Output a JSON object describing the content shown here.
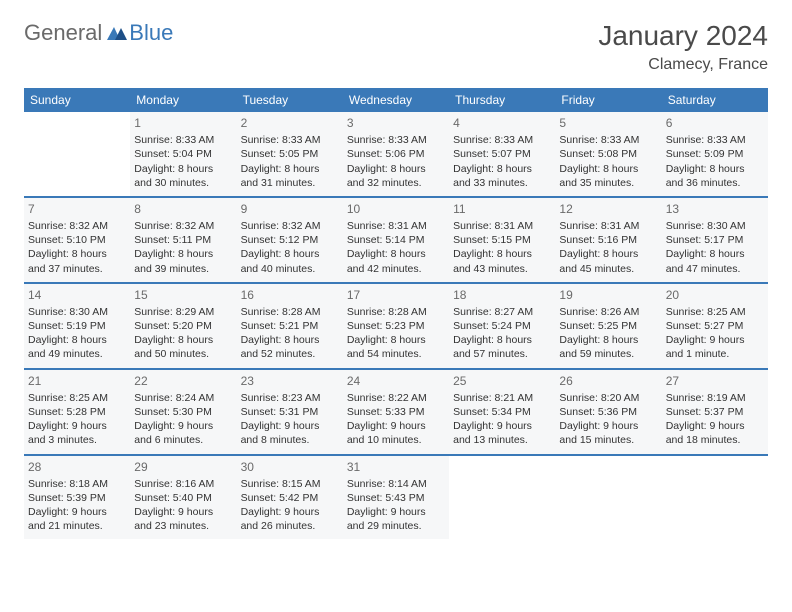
{
  "logo": {
    "text1": "General",
    "text2": "Blue"
  },
  "title": "January 2024",
  "location": "Clamecy, France",
  "day_names": [
    "Sunday",
    "Monday",
    "Tuesday",
    "Wednesday",
    "Thursday",
    "Friday",
    "Saturday"
  ],
  "colors": {
    "header_bg": "#3a79b8",
    "header_fg": "#ffffff",
    "cell_bg": "#f6f7f8",
    "text": "#333333",
    "title": "#4a4a4a"
  },
  "weeks": [
    [
      {
        "empty": true
      },
      {
        "num": "1",
        "sunrise": "8:33 AM",
        "sunset": "5:04 PM",
        "daylight": "8 hours and 30 minutes."
      },
      {
        "num": "2",
        "sunrise": "8:33 AM",
        "sunset": "5:05 PM",
        "daylight": "8 hours and 31 minutes."
      },
      {
        "num": "3",
        "sunrise": "8:33 AM",
        "sunset": "5:06 PM",
        "daylight": "8 hours and 32 minutes."
      },
      {
        "num": "4",
        "sunrise": "8:33 AM",
        "sunset": "5:07 PM",
        "daylight": "8 hours and 33 minutes."
      },
      {
        "num": "5",
        "sunrise": "8:33 AM",
        "sunset": "5:08 PM",
        "daylight": "8 hours and 35 minutes."
      },
      {
        "num": "6",
        "sunrise": "8:33 AM",
        "sunset": "5:09 PM",
        "daylight": "8 hours and 36 minutes."
      }
    ],
    [
      {
        "num": "7",
        "sunrise": "8:32 AM",
        "sunset": "5:10 PM",
        "daylight": "8 hours and 37 minutes."
      },
      {
        "num": "8",
        "sunrise": "8:32 AM",
        "sunset": "5:11 PM",
        "daylight": "8 hours and 39 minutes."
      },
      {
        "num": "9",
        "sunrise": "8:32 AM",
        "sunset": "5:12 PM",
        "daylight": "8 hours and 40 minutes."
      },
      {
        "num": "10",
        "sunrise": "8:31 AM",
        "sunset": "5:14 PM",
        "daylight": "8 hours and 42 minutes."
      },
      {
        "num": "11",
        "sunrise": "8:31 AM",
        "sunset": "5:15 PM",
        "daylight": "8 hours and 43 minutes."
      },
      {
        "num": "12",
        "sunrise": "8:31 AM",
        "sunset": "5:16 PM",
        "daylight": "8 hours and 45 minutes."
      },
      {
        "num": "13",
        "sunrise": "8:30 AM",
        "sunset": "5:17 PM",
        "daylight": "8 hours and 47 minutes."
      }
    ],
    [
      {
        "num": "14",
        "sunrise": "8:30 AM",
        "sunset": "5:19 PM",
        "daylight": "8 hours and 49 minutes."
      },
      {
        "num": "15",
        "sunrise": "8:29 AM",
        "sunset": "5:20 PM",
        "daylight": "8 hours and 50 minutes."
      },
      {
        "num": "16",
        "sunrise": "8:28 AM",
        "sunset": "5:21 PM",
        "daylight": "8 hours and 52 minutes."
      },
      {
        "num": "17",
        "sunrise": "8:28 AM",
        "sunset": "5:23 PM",
        "daylight": "8 hours and 54 minutes."
      },
      {
        "num": "18",
        "sunrise": "8:27 AM",
        "sunset": "5:24 PM",
        "daylight": "8 hours and 57 minutes."
      },
      {
        "num": "19",
        "sunrise": "8:26 AM",
        "sunset": "5:25 PM",
        "daylight": "8 hours and 59 minutes."
      },
      {
        "num": "20",
        "sunrise": "8:25 AM",
        "sunset": "5:27 PM",
        "daylight": "9 hours and 1 minute."
      }
    ],
    [
      {
        "num": "21",
        "sunrise": "8:25 AM",
        "sunset": "5:28 PM",
        "daylight": "9 hours and 3 minutes."
      },
      {
        "num": "22",
        "sunrise": "8:24 AM",
        "sunset": "5:30 PM",
        "daylight": "9 hours and 6 minutes."
      },
      {
        "num": "23",
        "sunrise": "8:23 AM",
        "sunset": "5:31 PM",
        "daylight": "9 hours and 8 minutes."
      },
      {
        "num": "24",
        "sunrise": "8:22 AM",
        "sunset": "5:33 PM",
        "daylight": "9 hours and 10 minutes."
      },
      {
        "num": "25",
        "sunrise": "8:21 AM",
        "sunset": "5:34 PM",
        "daylight": "9 hours and 13 minutes."
      },
      {
        "num": "26",
        "sunrise": "8:20 AM",
        "sunset": "5:36 PM",
        "daylight": "9 hours and 15 minutes."
      },
      {
        "num": "27",
        "sunrise": "8:19 AM",
        "sunset": "5:37 PM",
        "daylight": "9 hours and 18 minutes."
      }
    ],
    [
      {
        "num": "28",
        "sunrise": "8:18 AM",
        "sunset": "5:39 PM",
        "daylight": "9 hours and 21 minutes."
      },
      {
        "num": "29",
        "sunrise": "8:16 AM",
        "sunset": "5:40 PM",
        "daylight": "9 hours and 23 minutes."
      },
      {
        "num": "30",
        "sunrise": "8:15 AM",
        "sunset": "5:42 PM",
        "daylight": "9 hours and 26 minutes."
      },
      {
        "num": "31",
        "sunrise": "8:14 AM",
        "sunset": "5:43 PM",
        "daylight": "9 hours and 29 minutes."
      },
      {
        "empty": true
      },
      {
        "empty": true
      },
      {
        "empty": true
      }
    ]
  ],
  "labels": {
    "sunrise": "Sunrise:",
    "sunset": "Sunset:",
    "daylight": "Daylight:"
  }
}
